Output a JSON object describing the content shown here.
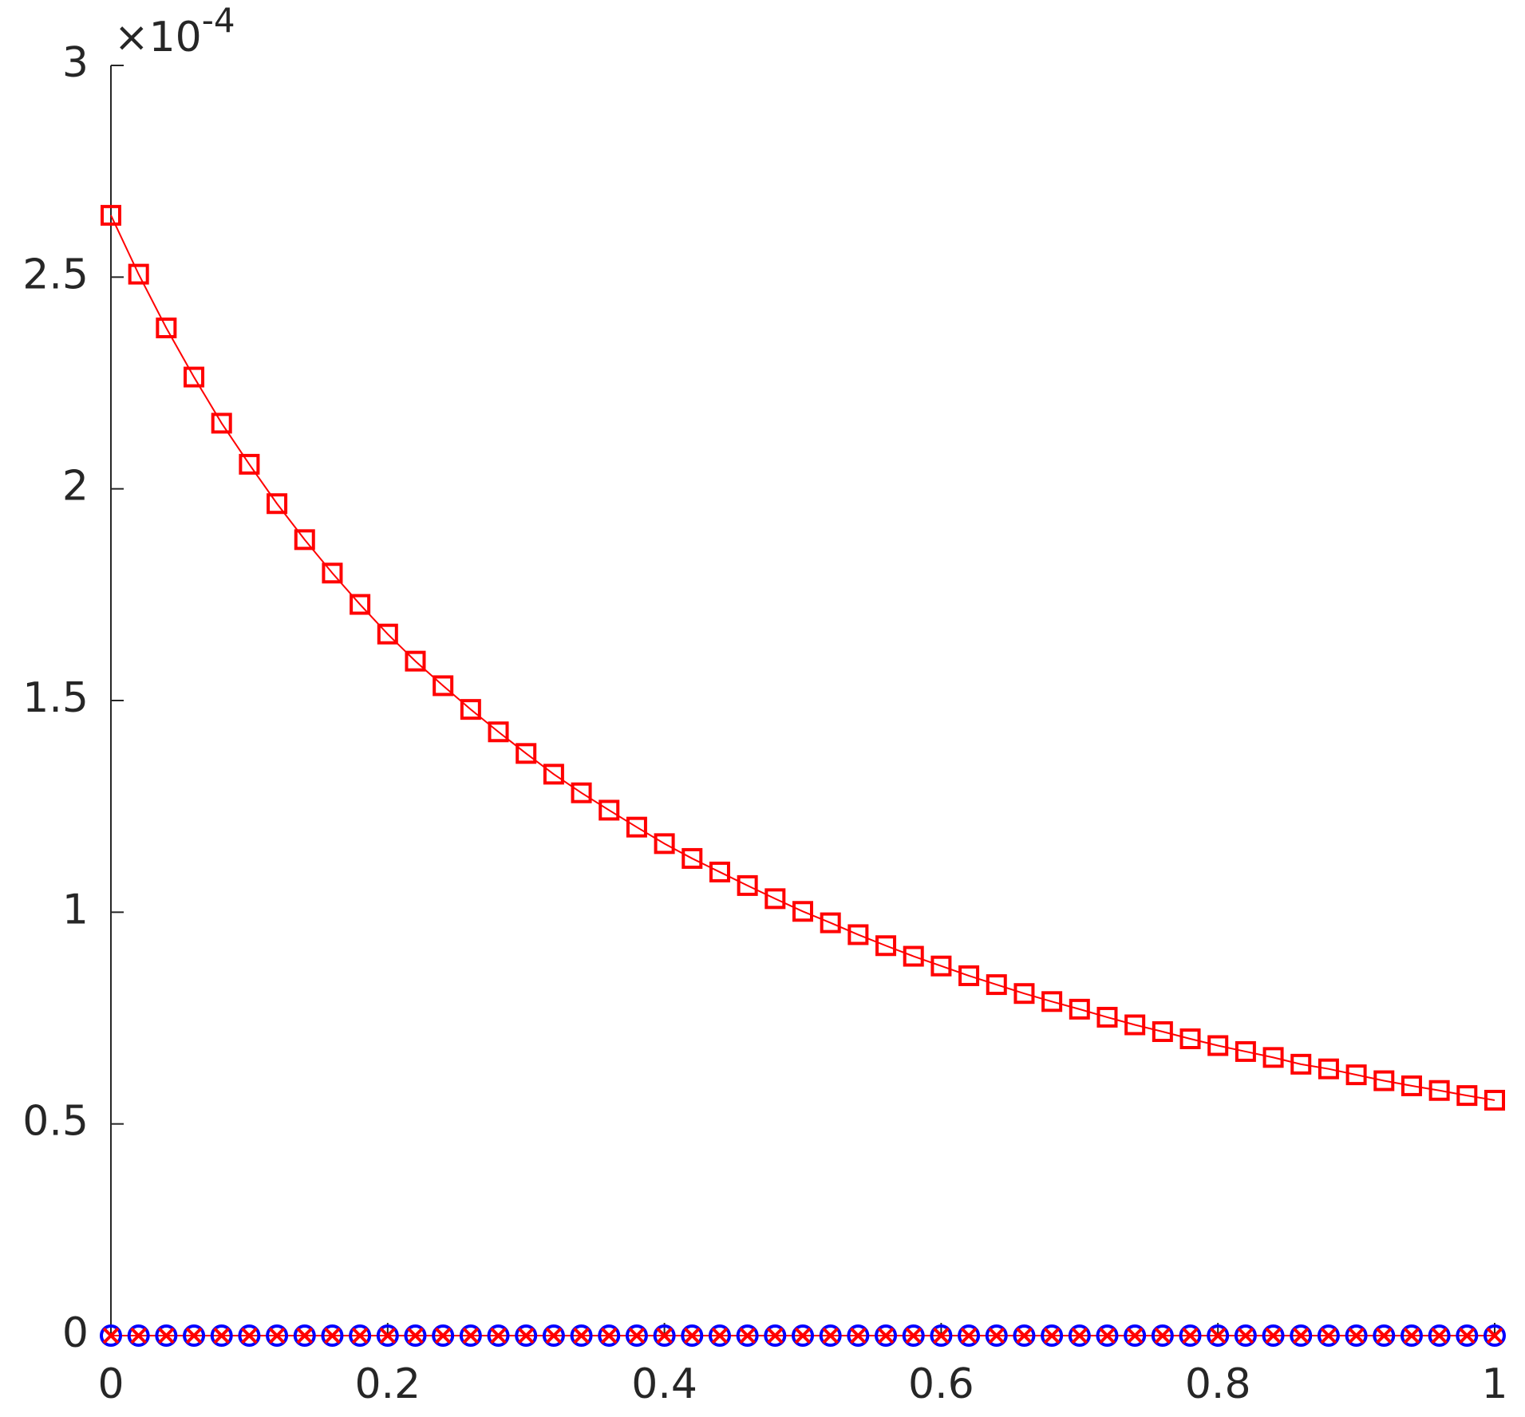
{
  "chart_data": {
    "type": "line",
    "x": [
      0,
      0.02,
      0.04,
      0.06,
      0.08,
      0.1,
      0.12,
      0.14,
      0.16,
      0.18,
      0.2,
      0.22,
      0.24,
      0.26,
      0.28,
      0.3,
      0.32,
      0.34,
      0.36,
      0.38,
      0.4,
      0.42,
      0.44,
      0.46,
      0.48,
      0.5,
      0.52,
      0.54,
      0.56,
      0.58,
      0.6,
      0.62,
      0.64,
      0.66,
      0.68,
      0.7,
      0.72,
      0.74,
      0.76,
      0.78,
      0.8,
      0.82,
      0.84,
      0.86,
      0.88,
      0.9,
      0.92,
      0.94,
      0.96,
      0.98,
      1
    ],
    "series": [
      {
        "color": "#ff0000",
        "marker": "square",
        "values": [
          2.646,
          2.507,
          2.38,
          2.264,
          2.155,
          2.058,
          1.965,
          1.88,
          1.801,
          1.727,
          1.657,
          1.593,
          1.535,
          1.479,
          1.426,
          1.375,
          1.326,
          1.282,
          1.241,
          1.201,
          1.162,
          1.127,
          1.095,
          1.063,
          1.032,
          1.002,
          0.975,
          0.947,
          0.921,
          0.896,
          0.873,
          0.85,
          0.829,
          0.808,
          0.789,
          0.771,
          0.752,
          0.734,
          0.718,
          0.701,
          0.685,
          0.671,
          0.657,
          0.641,
          0.63,
          0.616,
          0.602,
          0.59,
          0.579,
          0.567,
          0.556
        ]
      },
      {
        "color": "#0000ff",
        "marker": "circle",
        "values": [
          0,
          0,
          0,
          0,
          0,
          0,
          0,
          0,
          0,
          0,
          0,
          0,
          0,
          0,
          0,
          0,
          0,
          0,
          0,
          0,
          0,
          0,
          0,
          0,
          0,
          0,
          0,
          0,
          0,
          0,
          0,
          0,
          0,
          0,
          0,
          0,
          0,
          0,
          0,
          0,
          0,
          0,
          0,
          0,
          0,
          0,
          0,
          0,
          0,
          0,
          0
        ]
      },
      {
        "color": "#ff0000",
        "marker": "x",
        "values": [
          0,
          0,
          0,
          0,
          0,
          0,
          0,
          0,
          0,
          0,
          0,
          0,
          0,
          0,
          0,
          0,
          0,
          0,
          0,
          0,
          0,
          0,
          0,
          0,
          0,
          0,
          0,
          0,
          0,
          0,
          0,
          0,
          0,
          0,
          0,
          0,
          0,
          0,
          0,
          0,
          0,
          0,
          0,
          0,
          0,
          0,
          0,
          0,
          0,
          0,
          0
        ]
      }
    ],
    "xlim": [
      0,
      1
    ],
    "xticks": [
      0,
      0.2,
      0.4,
      0.6,
      0.8,
      1
    ],
    "ylim": [
      0,
      3
    ],
    "yticks": [
      0,
      0.5,
      1,
      1.5,
      2,
      2.5,
      3
    ],
    "y_multiplier": {
      "base": "×10",
      "exponent": "-4"
    },
    "grid": false
  }
}
